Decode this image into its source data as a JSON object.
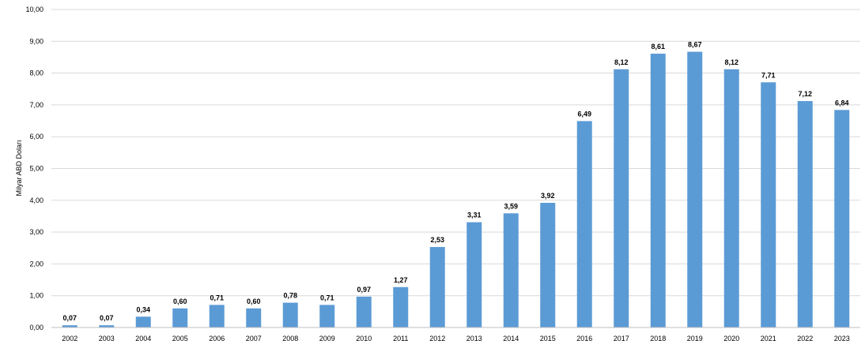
{
  "chart_data": {
    "type": "bar",
    "categories": [
      "2002",
      "2003",
      "2004",
      "2005",
      "2006",
      "2007",
      "2008",
      "2009",
      "2010",
      "2011",
      "2012",
      "2013",
      "2014",
      "2015",
      "2016",
      "2017",
      "2018",
      "2019",
      "2020",
      "2021",
      "2022",
      "2023"
    ],
    "values": [
      0.07,
      0.07,
      0.34,
      0.6,
      0.71,
      0.6,
      0.78,
      0.71,
      0.97,
      1.27,
      2.53,
      3.31,
      3.59,
      3.92,
      6.49,
      8.12,
      8.61,
      8.67,
      8.12,
      7.71,
      7.12,
      6.84
    ],
    "value_labels": [
      "0,07",
      "0,07",
      "0,34",
      "0,60",
      "0,71",
      "0,60",
      "0,78",
      "0,71",
      "0,97",
      "1,27",
      "2,53",
      "3,31",
      "3,59",
      "3,92",
      "6,49",
      "8,12",
      "8,61",
      "8,67",
      "8,12",
      "7,71",
      "7,12",
      "6,84"
    ],
    "ylabel": "Milyar ABD Doları",
    "xlabel": "",
    "title": "",
    "ylim": [
      0,
      10
    ],
    "y_ticks": [
      "0,00",
      "1,00",
      "2,00",
      "3,00",
      "4,00",
      "5,00",
      "6,00",
      "7,00",
      "8,00",
      "9,00",
      "10,00"
    ],
    "grid": true,
    "legend": "none",
    "colors": {
      "bar": "#5b9bd5",
      "grid": "#d9d9d9",
      "axis": "#bfbfbf",
      "text": "#000000"
    }
  }
}
